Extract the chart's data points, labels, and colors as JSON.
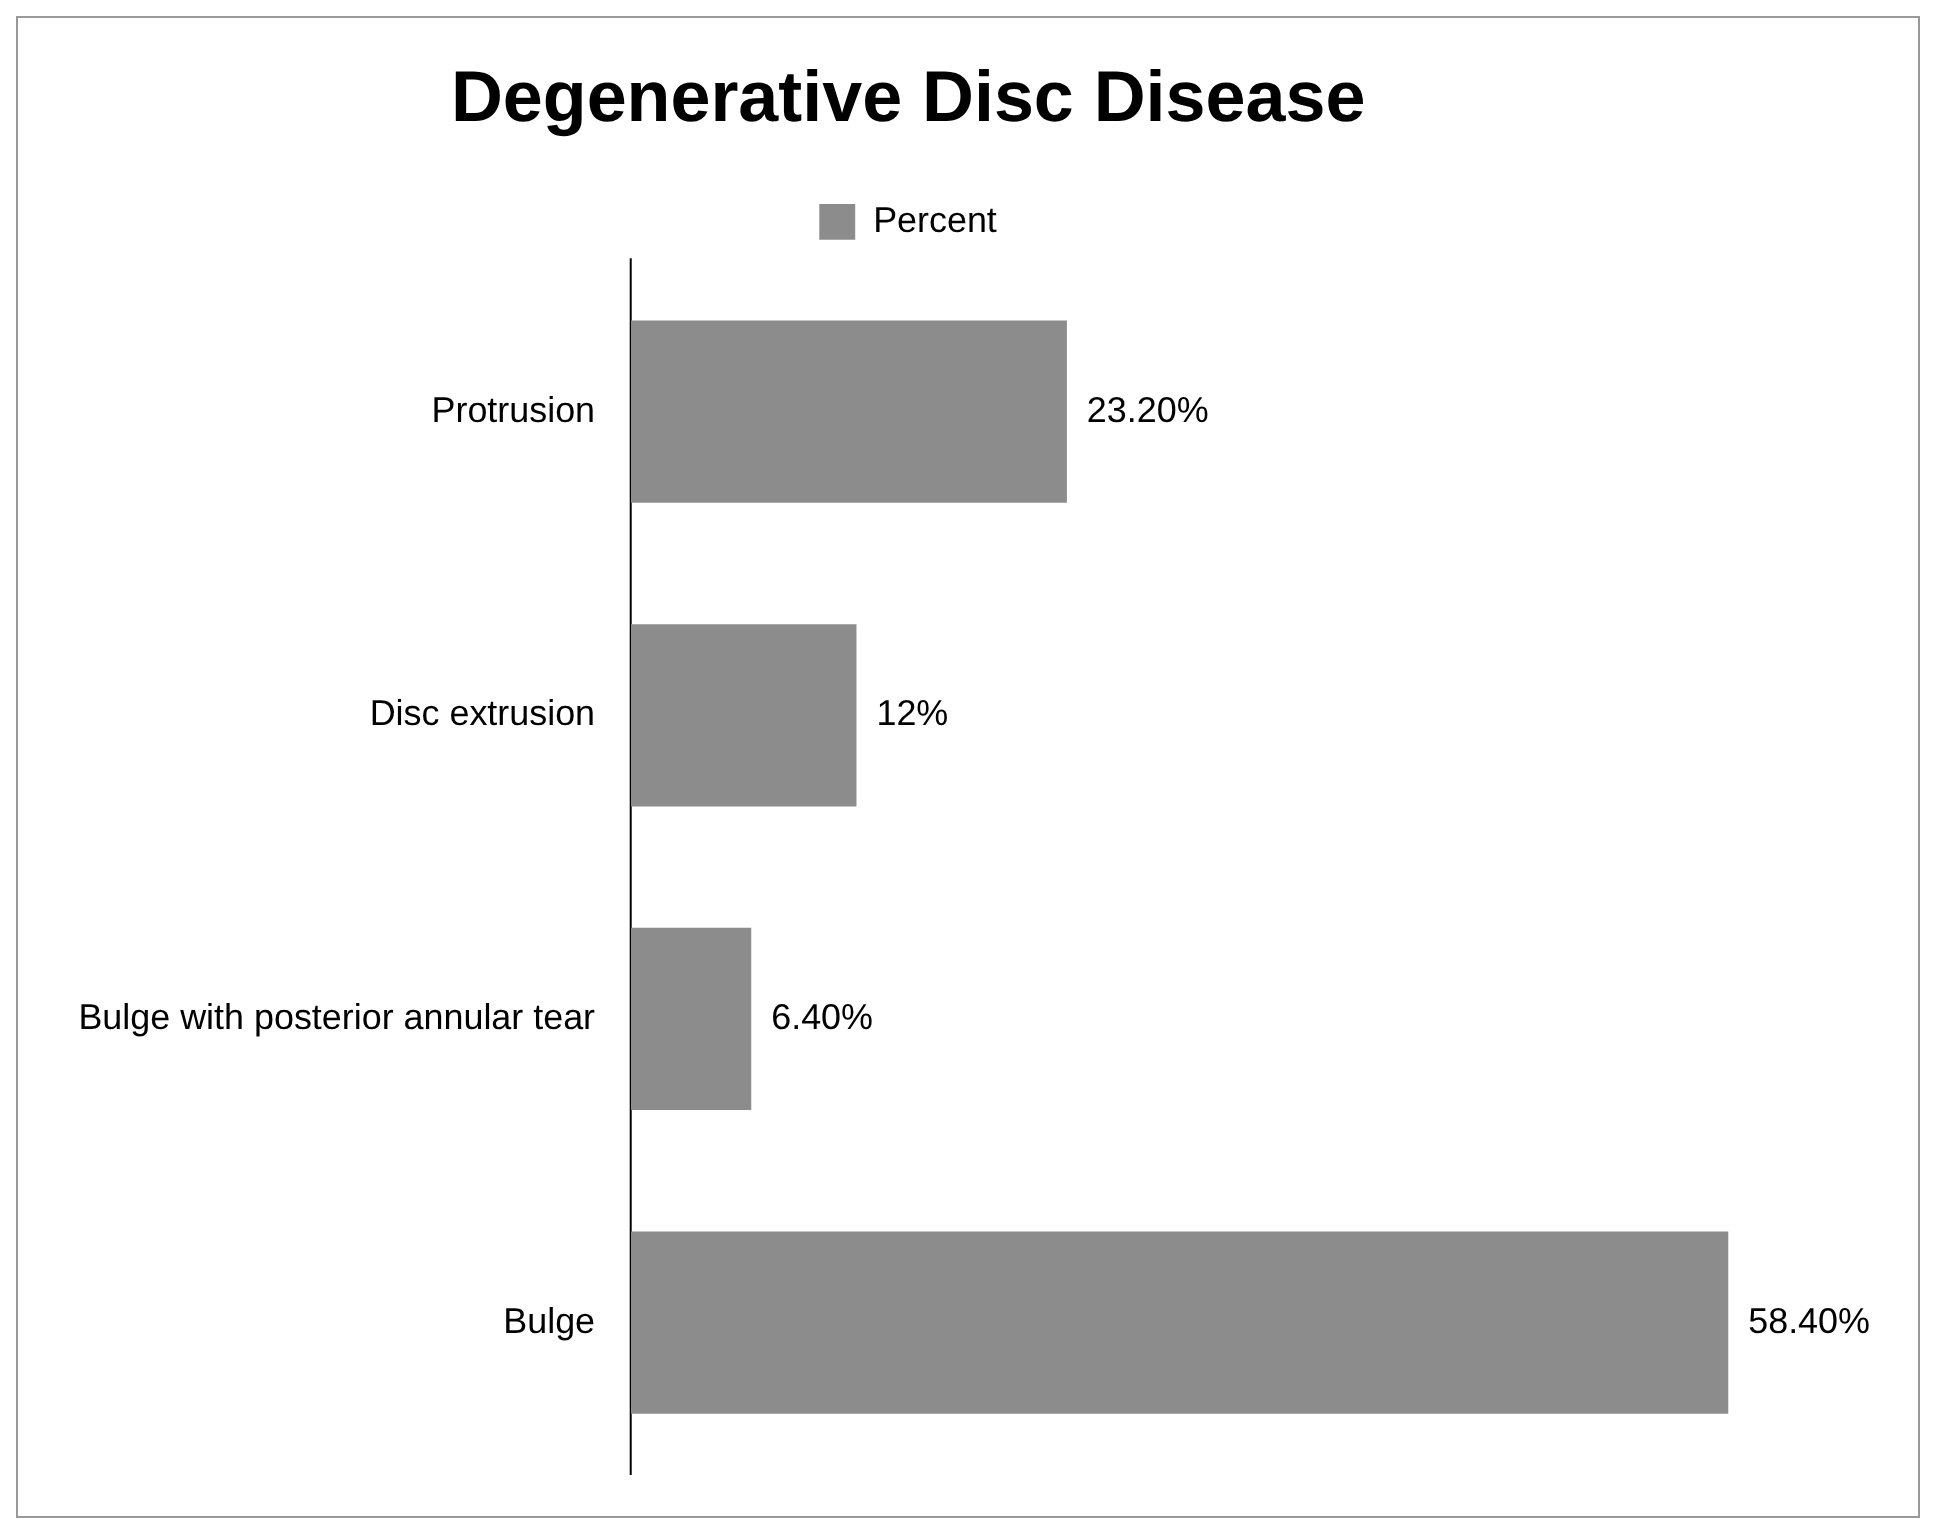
{
  "chart_data": {
    "type": "bar",
    "title": "Degenerative Disc Disease",
    "orientation": "horizontal",
    "categories": [
      "Protrusion",
      "Disc extrusion",
      "Bulge with posterior annular tear",
      "Bulge"
    ],
    "series": [
      {
        "name": "Percent",
        "color": "#8c8c8c",
        "values": [
          23.2,
          12,
          6.4,
          58.4
        ],
        "value_labels": [
          "23.20%",
          "12%",
          "6.40%",
          "58.40%"
        ]
      }
    ],
    "legend": "top",
    "grid": false
  }
}
